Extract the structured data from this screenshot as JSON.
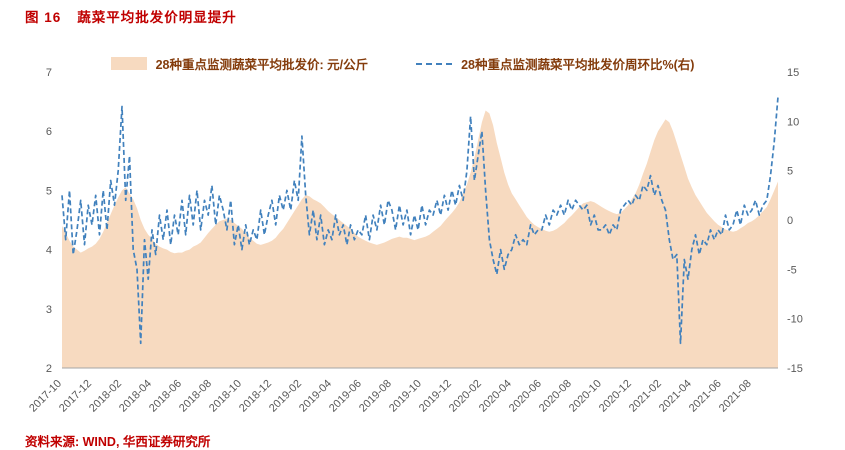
{
  "header": {
    "figure_label": "图 16",
    "title": "蔬菜平均批发价明显提升"
  },
  "legend": [
    {
      "label": "28种重点监测蔬菜平均批发价: 元/公斤",
      "type": "area"
    },
    {
      "label": "28种重点监测蔬菜平均批发价周环比%(右)",
      "type": "dashed-line"
    }
  ],
  "source": "资料来源: WIND, 华西证券研究所",
  "colors": {
    "title_red": "#C00000",
    "source_red": "#C00000",
    "legend_text": "#843C0C",
    "area": "#F7DAC0",
    "line": "#4181BD",
    "axis_text": "#595959",
    "axis_line": "#A6A6A6"
  },
  "chart_data": {
    "type": "area+line",
    "title": "蔬菜平均批发价明显提升",
    "x_tick_labels": [
      "2017-10",
      "2017-12",
      "2018-02",
      "2018-04",
      "2018-06",
      "2018-08",
      "2018-10",
      "2018-12",
      "2019-02",
      "2019-04",
      "2019-06",
      "2019-08",
      "2019-10",
      "2019-12",
      "2020-02",
      "2020-04",
      "2020-06",
      "2020-08",
      "2020-10",
      "2020-12",
      "2021-02",
      "2021-04",
      "2021-06",
      "2021-08"
    ],
    "x_points_per_tick": 8,
    "left_axis": {
      "ticks": [
        2,
        3,
        4,
        5,
        6,
        7
      ],
      "range": [
        2,
        7
      ],
      "label": "元/公斤"
    },
    "right_axis": {
      "ticks": [
        -15,
        -10,
        -5,
        0,
        5,
        10,
        15
      ],
      "range": [
        -15,
        15
      ],
      "label": "周环比%"
    },
    "legend_position": "top-center",
    "grid": false,
    "series": [
      {
        "name": "28种重点监测蔬菜平均批发价: 元/公斤",
        "type": "area",
        "axis": "left",
        "values": [
          4.4,
          4.28,
          4.15,
          4.05,
          4.0,
          3.95,
          3.98,
          4.02,
          4.05,
          4.1,
          4.18,
          4.3,
          4.45,
          4.6,
          4.75,
          4.88,
          5.0,
          5.05,
          4.95,
          4.85,
          4.7,
          4.5,
          4.35,
          4.25,
          4.18,
          4.1,
          4.05,
          4.02,
          4.0,
          3.96,
          3.94,
          3.95,
          3.95,
          3.98,
          4.0,
          4.05,
          4.08,
          4.12,
          4.2,
          4.28,
          4.35,
          4.42,
          4.48,
          4.5,
          4.52,
          4.5,
          4.45,
          4.4,
          4.35,
          4.28,
          4.2,
          4.15,
          4.1,
          4.08,
          4.1,
          4.12,
          4.15,
          4.2,
          4.28,
          4.35,
          4.45,
          4.55,
          4.65,
          4.75,
          4.85,
          4.92,
          4.9,
          4.85,
          4.82,
          4.78,
          4.72,
          4.65,
          4.6,
          4.55,
          4.5,
          4.45,
          4.4,
          4.35,
          4.28,
          4.22,
          4.18,
          4.15,
          4.12,
          4.1,
          4.08,
          4.1,
          4.12,
          4.15,
          4.18,
          4.2,
          4.22,
          4.2,
          4.2,
          4.18,
          4.16,
          4.18,
          4.2,
          4.22,
          4.25,
          4.3,
          4.35,
          4.4,
          4.48,
          4.55,
          4.62,
          4.7,
          4.8,
          4.95,
          5.1,
          5.3,
          5.55,
          5.85,
          6.15,
          6.35,
          6.3,
          6.1,
          5.8,
          5.55,
          5.3,
          5.1,
          4.95,
          4.85,
          4.75,
          4.65,
          4.55,
          4.48,
          4.42,
          4.38,
          4.35,
          4.32,
          4.3,
          4.32,
          4.35,
          4.4,
          4.45,
          4.52,
          4.58,
          4.65,
          4.72,
          4.78,
          4.8,
          4.82,
          4.8,
          4.76,
          4.72,
          4.68,
          4.65,
          4.62,
          4.6,
          4.62,
          4.68,
          4.75,
          4.85,
          4.95,
          5.1,
          5.28,
          5.45,
          5.65,
          5.85,
          6.0,
          6.1,
          6.2,
          6.15,
          6.0,
          5.8,
          5.6,
          5.4,
          5.2,
          5.05,
          4.92,
          4.82,
          4.72,
          4.62,
          4.55,
          4.48,
          4.42,
          4.38,
          4.34,
          4.32,
          4.3,
          4.32,
          4.36,
          4.4,
          4.45,
          4.48,
          4.52,
          4.58,
          4.65,
          4.72,
          4.85,
          5.0,
          5.15
        ]
      },
      {
        "name": "28种重点监测蔬菜平均批发价周环比%(右)",
        "type": "line-dashed",
        "axis": "right",
        "values": [
          2.5,
          -2.0,
          3.0,
          -3.5,
          -1.0,
          2.0,
          -2.5,
          1.5,
          -0.5,
          2.5,
          -1.5,
          3.0,
          -1.0,
          4.0,
          1.5,
          5.0,
          11.5,
          2.0,
          6.5,
          -3.0,
          -5.0,
          -12.5,
          -2.0,
          -6.0,
          -1.0,
          -3.5,
          0.5,
          -2.0,
          1.0,
          -2.5,
          0.5,
          -1.5,
          2.0,
          -1.5,
          2.5,
          -0.5,
          3.0,
          -1.0,
          2.0,
          0.5,
          3.5,
          -0.5,
          2.5,
          1.0,
          -1.0,
          2.0,
          -2.5,
          -0.5,
          -3.0,
          -0.5,
          -2.5,
          -1.0,
          -2.0,
          1.0,
          -1.5,
          0.5,
          2.0,
          -0.5,
          2.5,
          1.0,
          3.0,
          1.0,
          4.0,
          2.0,
          8.5,
          2.5,
          -1.5,
          1.0,
          -2.0,
          0.5,
          -2.5,
          -1.0,
          -2.0,
          0.5,
          -1.5,
          -0.5,
          -2.5,
          -0.5,
          -2.0,
          -1.0,
          -1.5,
          0.5,
          -2.0,
          0.5,
          -1.0,
          1.5,
          -0.5,
          2.0,
          1.0,
          -1.0,
          1.5,
          -0.5,
          1.0,
          -1.5,
          0.5,
          -1.0,
          1.5,
          -0.5,
          1.0,
          0.5,
          2.0,
          0.5,
          2.5,
          1.0,
          3.0,
          1.5,
          3.5,
          2.0,
          5.0,
          10.5,
          4.0,
          6.5,
          9.0,
          3.0,
          -2.0,
          -4.0,
          -5.5,
          -3.0,
          -5.0,
          -3.5,
          -3.0,
          -1.5,
          -2.5,
          -2.0,
          -2.5,
          -0.5,
          -1.5,
          -1.0,
          -1.0,
          0.5,
          -0.5,
          1.0,
          0.5,
          1.5,
          0.5,
          2.0,
          1.0,
          2.0,
          1.5,
          1.0,
          1.5,
          -0.5,
          0.5,
          -1.0,
          -1.0,
          -0.5,
          -1.5,
          -0.5,
          -1.0,
          1.0,
          1.5,
          2.0,
          1.5,
          2.5,
          2.0,
          3.5,
          3.0,
          4.5,
          2.5,
          3.5,
          2.0,
          1.0,
          -2.0,
          -4.0,
          -3.5,
          -12.5,
          -4.0,
          -6.0,
          -3.0,
          -1.5,
          -3.5,
          -2.0,
          -2.5,
          -1.0,
          -2.0,
          -1.0,
          -1.5,
          0.5,
          -1.0,
          -0.5,
          1.0,
          -0.5,
          1.5,
          0.5,
          1.0,
          2.0,
          0.5,
          1.5,
          2.0,
          4.5,
          8.0,
          12.5
        ]
      }
    ]
  }
}
